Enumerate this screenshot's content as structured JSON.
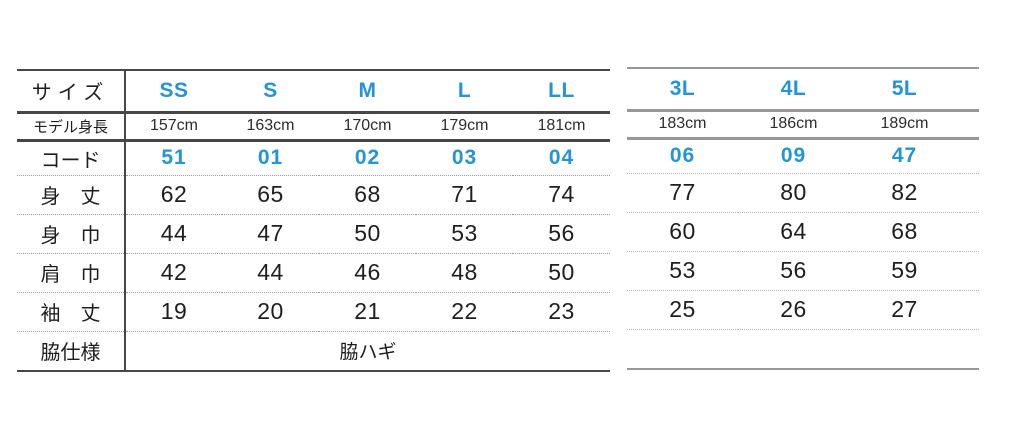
{
  "page": {
    "background": "#ffffff"
  },
  "colors": {
    "accent_blue": "#2295d6",
    "text_dark": "#1e1e1e",
    "line_dark": "#474747",
    "line_light": "#979797",
    "dot_dark": "#9a9a9a",
    "dot_light": "#b7b7b7"
  },
  "table": {
    "row_labels": {
      "size": "サイズ",
      "model_height": "モデル身長",
      "code": "コード",
      "body_length": "身　丈",
      "body_width": "身　巾",
      "shoulder_width": "肩　巾",
      "sleeve_length": "袖　丈",
      "side_spec": "脇仕様"
    },
    "sizes": [
      "SS",
      "S",
      "M",
      "L",
      "LL",
      "3L",
      "4L",
      "5L"
    ],
    "model_heights": [
      "157cm",
      "163cm",
      "170cm",
      "179cm",
      "181cm",
      "183cm",
      "186cm",
      "189cm"
    ],
    "codes": [
      "51",
      "01",
      "02",
      "03",
      "04",
      "06",
      "09",
      "47"
    ],
    "body_length": [
      "62",
      "65",
      "68",
      "71",
      "74",
      "77",
      "80",
      "82"
    ],
    "body_width": [
      "44",
      "47",
      "50",
      "53",
      "56",
      "60",
      "64",
      "68"
    ],
    "shoulder_width": [
      "42",
      "44",
      "46",
      "48",
      "50",
      "53",
      "56",
      "59"
    ],
    "sleeve_length": [
      "19",
      "20",
      "21",
      "22",
      "23",
      "25",
      "26",
      "27"
    ],
    "side_spec_value": "脇ハギ"
  },
  "chart_data": {
    "type": "table",
    "columns": [
      "サイズ",
      "SS",
      "S",
      "M",
      "L",
      "LL",
      "3L",
      "4L",
      "5L"
    ],
    "rows": [
      [
        "モデル身長",
        "157cm",
        "163cm",
        "170cm",
        "179cm",
        "181cm",
        "183cm",
        "186cm",
        "189cm"
      ],
      [
        "コード",
        "51",
        "01",
        "02",
        "03",
        "04",
        "06",
        "09",
        "47"
      ],
      [
        "身丈",
        "62",
        "65",
        "68",
        "71",
        "74",
        "77",
        "80",
        "82"
      ],
      [
        "身巾",
        "44",
        "47",
        "50",
        "53",
        "56",
        "60",
        "64",
        "68"
      ],
      [
        "肩巾",
        "42",
        "44",
        "46",
        "48",
        "50",
        "53",
        "56",
        "59"
      ],
      [
        "袖丈",
        "19",
        "20",
        "21",
        "22",
        "23",
        "25",
        "26",
        "27"
      ],
      [
        "脇仕様",
        "脇ハギ",
        "",
        "",
        "",
        "",
        "",
        "",
        ""
      ]
    ],
    "layout": {
      "grid": "solid header separators, dotted row separators",
      "accent_text_rows": [
        "サイズ",
        "コード"
      ],
      "accent_color": "#2295d6"
    }
  }
}
